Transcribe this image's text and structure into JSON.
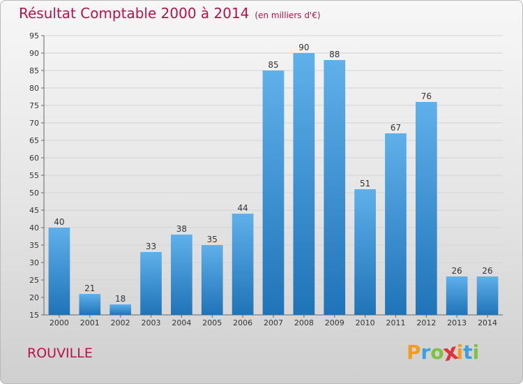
{
  "header": {
    "title": "Résultat Comptable 2000 à 2014",
    "subtitle": "(en milliers d'€)"
  },
  "footer": {
    "place": "ROUVILLE",
    "brand": "Proxiti",
    "brand_letters": [
      {
        "ch": "P",
        "color": "#f39c1f"
      },
      {
        "ch": "r",
        "color": "#3aa0de"
      },
      {
        "ch": "o",
        "color": "#7cc142"
      },
      {
        "ch": "x",
        "color": "#e2313a"
      },
      {
        "ch": "i",
        "color": "#f39c1f"
      },
      {
        "ch": "t",
        "color": "#3aa0de"
      },
      {
        "ch": "i",
        "color": "#7cc142"
      }
    ]
  },
  "colors": {
    "title": "#b5124a",
    "bar_top": "#5fb0ea",
    "bar_bottom": "#1f74b8",
    "grid": "#d4d4d4",
    "axis_text": "#333333"
  },
  "chart_data": {
    "type": "bar",
    "categories": [
      "2000",
      "2001",
      "2002",
      "2003",
      "2004",
      "2005",
      "2006",
      "2007",
      "2008",
      "2009",
      "2010",
      "2011",
      "2012",
      "2013",
      "2014"
    ],
    "values": [
      40,
      21,
      18,
      33,
      38,
      35,
      44,
      85,
      90,
      88,
      51,
      67,
      76,
      26,
      26
    ],
    "ylim": [
      15,
      95
    ],
    "yticks": [
      15,
      20,
      25,
      30,
      35,
      40,
      45,
      50,
      55,
      60,
      65,
      70,
      75,
      80,
      85,
      90,
      95
    ],
    "grid": true,
    "data_labels": true
  }
}
